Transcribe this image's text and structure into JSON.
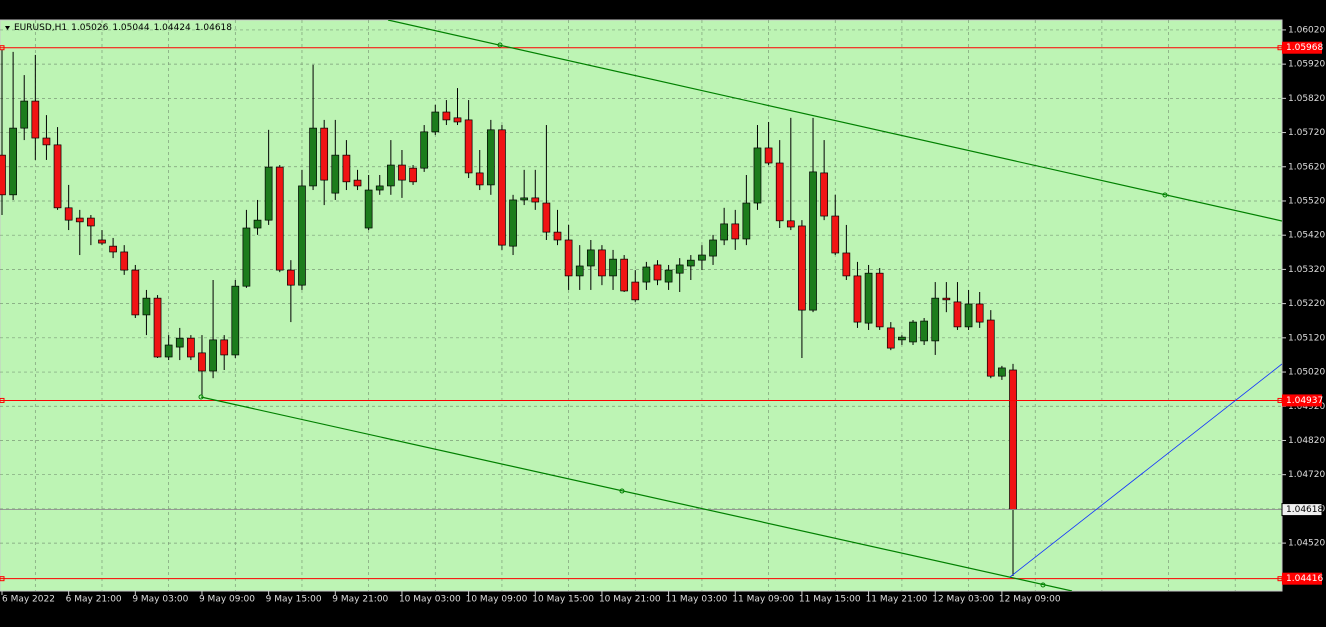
{
  "chart_data": {
    "type": "candlestick",
    "symbol": "EURUSD,H1",
    "categories": [
      "6 May 2022",
      null,
      null,
      null,
      null,
      null,
      "6 May 21:00",
      null,
      null,
      null,
      null,
      null,
      "9 May 03:00",
      null,
      null,
      null,
      null,
      null,
      "9 May 09:00",
      null,
      null,
      null,
      null,
      null,
      "9 May 15:00",
      null,
      null,
      null,
      null,
      null,
      "9 May 21:00",
      null,
      null,
      null,
      null,
      null,
      "10 May 03:00",
      null,
      null,
      null,
      null,
      null,
      "10 May 09:00",
      null,
      null,
      null,
      null,
      null,
      "10 May 15:00",
      null,
      null,
      null,
      null,
      null,
      "10 May 21:00",
      null,
      null,
      null,
      null,
      null,
      "11 May 03:00",
      null,
      null,
      null,
      null,
      null,
      "11 May 09:00",
      null,
      null,
      null,
      null,
      null,
      "11 May 15:00",
      null,
      null,
      null,
      null,
      null,
      "11 May 21:00",
      null,
      null,
      null,
      null,
      null,
      "12 May 03:00",
      null,
      null,
      null,
      null,
      null,
      "12 May 09:00",
      null
    ],
    "open": [
      1.05654,
      1.05538,
      1.05733,
      1.05812,
      1.05704,
      1.05684,
      1.055,
      1.0547,
      1.0547,
      1.05406,
      1.05388,
      1.05371,
      1.05318,
      1.05187,
      1.05236,
      1.05064,
      1.05093,
      1.05119,
      1.05076,
      1.05023,
      1.05114,
      1.0507,
      1.05271,
      1.05441,
      1.05464,
      1.05619,
      1.05318,
      1.05274,
      1.05564,
      1.05733,
      1.05543,
      1.05654,
      1.05581,
      1.05441,
      1.05552,
      1.05564,
      1.05625,
      1.05616,
      1.05616,
      1.05722,
      1.0578,
      1.05763,
      1.05757,
      1.05602,
      1.05567,
      1.05728,
      1.05388,
      1.05523,
      1.05529,
      1.05514,
      1.05429,
      1.05406,
      1.05301,
      1.0533,
      1.05377,
      1.05301,
      1.0535,
      1.05283,
      1.05283,
      1.05333,
      1.05283,
      1.05309,
      1.0533,
      1.05347,
      1.05359,
      1.05406,
      1.05453,
      1.05409,
      1.05514,
      1.05675,
      1.05631,
      1.05462,
      1.05447,
      1.05201,
      1.05602,
      1.05476,
      1.05368,
      1.05301,
      1.05163,
      1.05309,
      1.05149,
      1.05114,
      1.05108,
      1.05111,
      1.05111,
      1.05236,
      1.05225,
      1.05152,
      1.05219,
      1.05172,
      1.05008,
      1.05026
    ],
    "high": [
      1.05962,
      1.05956,
      1.05888,
      1.05947,
      1.05771,
      1.05736,
      1.05567,
      1.05494,
      1.05479,
      1.05435,
      1.05412,
      1.05391,
      1.05333,
      1.0526,
      1.05245,
      1.05128,
      1.05149,
      1.05128,
      1.05128,
      1.05289,
      1.05128,
      1.05289,
      1.05494,
      1.05523,
      1.05728,
      1.05625,
      1.05347,
      1.05611,
      1.05918,
      1.05757,
      1.05757,
      1.05698,
      1.05611,
      1.05596,
      1.05596,
      1.05698,
      1.05669,
      1.05625,
      1.05742,
      1.05801,
      1.05815,
      1.0585,
      1.05815,
      1.05669,
      1.05757,
      1.05742,
      1.05538,
      1.05611,
      1.05611,
      1.05742,
      1.05494,
      1.0545,
      1.05391,
      1.05406,
      1.05391,
      1.05377,
      1.05362,
      1.05318,
      1.05342,
      1.05347,
      1.05333,
      1.05353,
      1.05362,
      1.05391,
      1.05421,
      1.055,
      1.05494,
      1.05596,
      1.05742,
      1.05751,
      1.05698,
      1.05763,
      1.05464,
      1.05763,
      1.05698,
      1.05538,
      1.0545,
      1.05342,
      1.05333,
      1.05324,
      1.05166,
      1.05128,
      1.05172,
      1.05178,
      1.05283,
      1.05283,
      1.05283,
      1.0526,
      1.05254,
      1.05201,
      1.05038,
      1.05044
    ],
    "low": [
      1.05479,
      1.05523,
      1.05698,
      1.0564,
      1.0564,
      1.05494,
      1.05435,
      1.05362,
      1.05391,
      1.05391,
      1.05353,
      1.05304,
      1.05178,
      1.05128,
      1.05061,
      1.05055,
      1.05055,
      1.05055,
      1.04953,
      1.05002,
      1.05026,
      1.05061,
      1.05266,
      1.05421,
      1.0545,
      1.05312,
      1.05166,
      1.0526,
      1.05552,
      1.05508,
      1.05523,
      1.05552,
      1.05552,
      1.05435,
      1.05538,
      1.05538,
      1.05529,
      1.05567,
      1.05605,
      1.05713,
      1.05742,
      1.05742,
      1.05587,
      1.05552,
      1.05538,
      1.05377,
      1.05362,
      1.05508,
      1.05494,
      1.05406,
      1.05391,
      1.0526,
      1.0526,
      1.0526,
      1.05274,
      1.0526,
      1.05254,
      1.05225,
      1.0526,
      1.05274,
      1.0526,
      1.05254,
      1.05289,
      1.05318,
      1.05333,
      1.05391,
      1.05377,
      1.05391,
      1.05494,
      1.05625,
      1.05441,
      1.05435,
      1.05061,
      1.05195,
      1.05464,
      1.05362,
      1.05289,
      1.05149,
      1.05143,
      1.05143,
      1.05084,
      1.05099,
      1.05099,
      1.05099,
      1.0507,
      1.05195,
      1.05143,
      1.05143,
      1.05149,
      1.05002,
      1.04997,
      1.04424
    ],
    "close": [
      1.05538,
      1.05733,
      1.05812,
      1.05704,
      1.05684,
      1.055,
      1.05464,
      1.05459,
      1.05447,
      1.05397,
      1.05371,
      1.05318,
      1.05187,
      1.05236,
      1.05064,
      1.05099,
      1.05119,
      1.05064,
      1.05023,
      1.05114,
      1.0507,
      1.05271,
      1.05441,
      1.05464,
      1.05619,
      1.05318,
      1.05274,
      1.05564,
      1.05733,
      1.05581,
      1.05654,
      1.05576,
      1.05564,
      1.05552,
      1.05564,
      1.05625,
      1.05581,
      1.05576,
      1.05722,
      1.0578,
      1.05757,
      1.05751,
      1.05602,
      1.05567,
      1.05728,
      1.05391,
      1.05523,
      1.05529,
      1.05517,
      1.05429,
      1.05406,
      1.05301,
      1.0533,
      1.05377,
      1.05301,
      1.0535,
      1.05257,
      1.05231,
      1.05327,
      1.05289,
      1.05318,
      1.05333,
      1.05347,
      1.05362,
      1.05406,
      1.05453,
      1.05409,
      1.05514,
      1.05675,
      1.05631,
      1.05462,
      1.05444,
      1.05201,
      1.05605,
      1.05476,
      1.05368,
      1.05301,
      1.05166,
      1.05309,
      1.05152,
      1.0509,
      1.05122,
      1.05166,
      1.05169,
      1.05236,
      1.05231,
      1.05152,
      1.05219,
      1.05166,
      1.05008,
      1.05032,
      1.04618
    ],
    "up_color": "#1c7c1c",
    "down_color": "#f01414",
    "hlines": [
      1.05968,
      1.04937,
      1.04416
    ],
    "hline_color": "#ff0000",
    "ylim": [
      1.0438,
      1.06049
    ],
    "yticks": [
      {
        "value": 1.0602,
        "label": "1.06020"
      },
      {
        "value": 1.0592,
        "label": "1.05920"
      },
      {
        "value": 1.0582,
        "label": "1.05820"
      },
      {
        "value": 1.0572,
        "label": "1.05720"
      },
      {
        "value": 1.0562,
        "label": "1.05620"
      },
      {
        "value": 1.0552,
        "label": "1.05520"
      },
      {
        "value": 1.0542,
        "label": "1.05420"
      },
      {
        "value": 1.0532,
        "label": "1.05320"
      },
      {
        "value": 1.0522,
        "label": "1.05220"
      },
      {
        "value": 1.0512,
        "label": "1.05120"
      },
      {
        "value": 1.0502,
        "label": "1.05020"
      },
      {
        "value": 1.0492,
        "label": "1.04920"
      },
      {
        "value": 1.0482,
        "label": "1.04820"
      },
      {
        "value": 1.0472,
        "label": "1.04720"
      },
      {
        "value": 1.0462,
        "label": "1.04620"
      },
      {
        "value": 1.0452,
        "label": "1.04520"
      }
    ],
    "grid": true
  }
}
